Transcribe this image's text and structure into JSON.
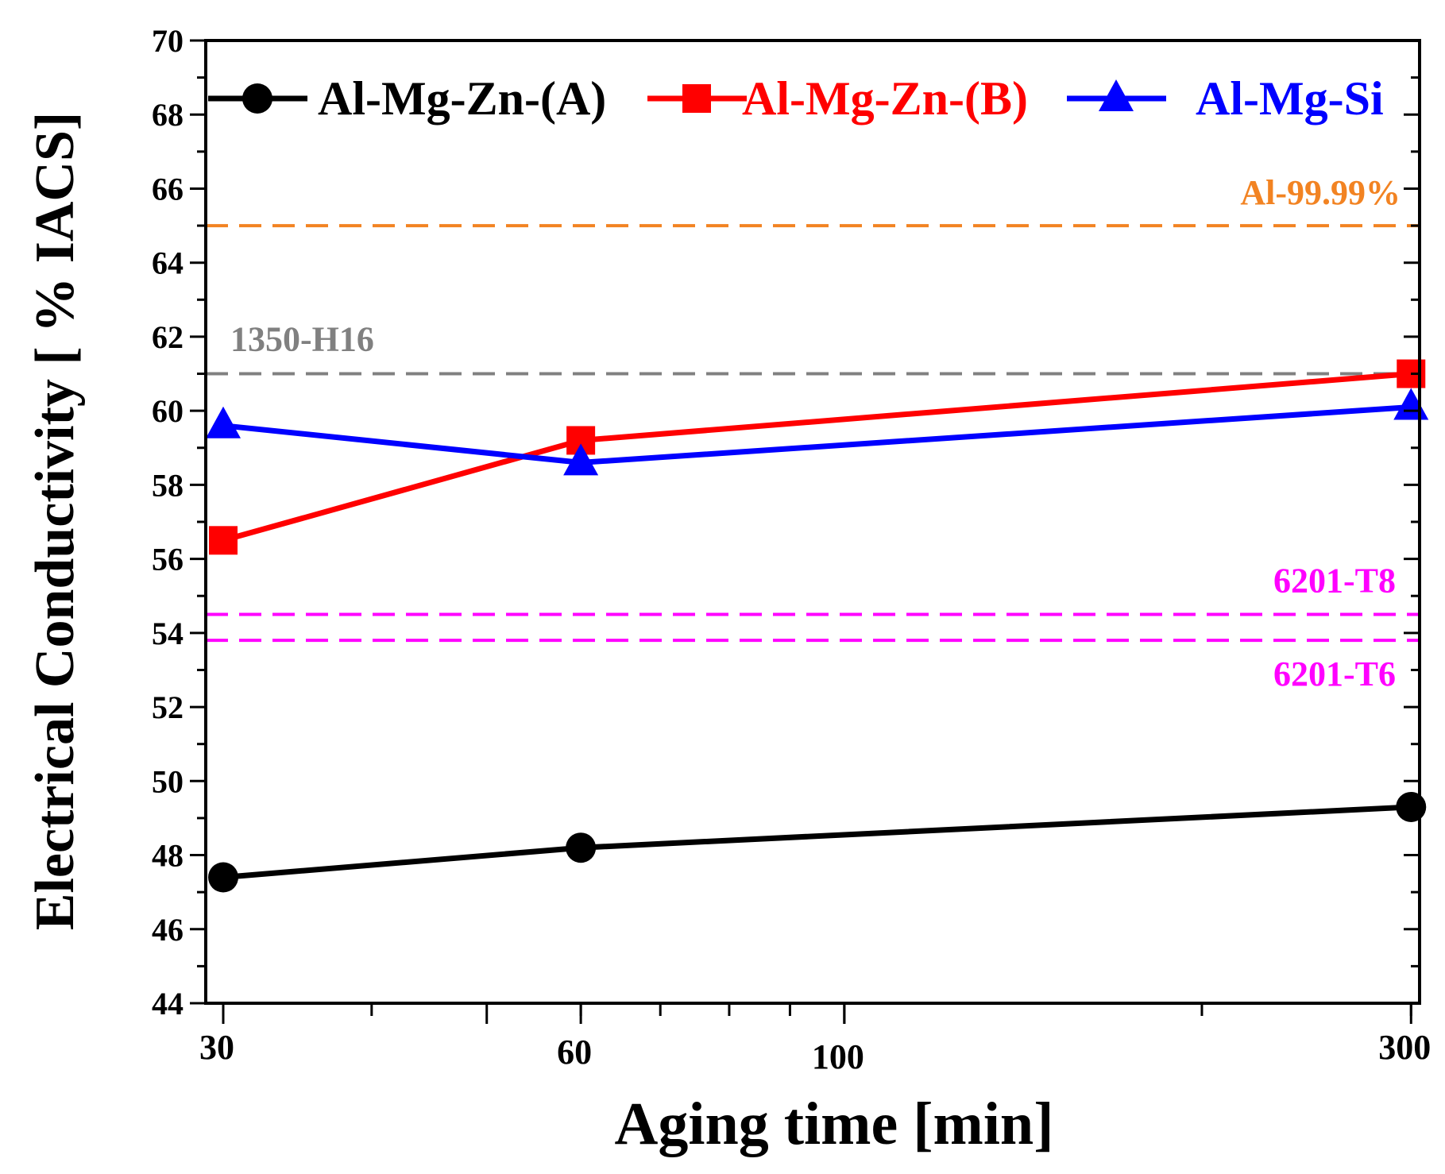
{
  "chart_data": {
    "type": "line",
    "title": "",
    "xlabel": "Aging time [min]",
    "ylabel": "Electrical Conductivity [ % IACS]",
    "xscale": "log",
    "xlim": [
      29,
      305
    ],
    "ylim": [
      44,
      70
    ],
    "xticks": [
      30,
      60,
      100,
      300
    ],
    "xtick_labels": [
      "30",
      "60",
      "100",
      "300"
    ],
    "yticks": [
      44,
      46,
      48,
      50,
      52,
      54,
      56,
      58,
      60,
      62,
      64,
      66,
      68,
      70
    ],
    "ytick_labels": [
      "44",
      "46",
      "48",
      "50",
      "52",
      "54",
      "56",
      "58",
      "60",
      "62",
      "64",
      "66",
      "68",
      "70"
    ],
    "legend_position": "top",
    "x": [
      30,
      60,
      300
    ],
    "series": [
      {
        "name": "Al-Mg-Zn-(A)",
        "color": "#000000",
        "marker": "circle",
        "values": [
          47.4,
          48.2,
          49.3
        ]
      },
      {
        "name": "Al-Mg-Zn-(B)",
        "color": "#ff0000",
        "marker": "square",
        "values": [
          56.5,
          59.2,
          61.0
        ]
      },
      {
        "name": "Al-Mg-Si",
        "color": "#0000ff",
        "marker": "triangle",
        "values": [
          59.6,
          58.6,
          60.1
        ]
      }
    ],
    "reference_lines": [
      {
        "label": "Al-99.99%",
        "value": 65.0,
        "color": "#f28322",
        "label_side": "above"
      },
      {
        "label": "1350-H16",
        "value": 61.0,
        "color": "#808080",
        "label_side": "above-left"
      },
      {
        "label": "6201-T8",
        "value": 54.5,
        "color": "#ff00ff",
        "label_side": "above"
      },
      {
        "label": "6201-T6",
        "value": 53.8,
        "color": "#ff00ff",
        "label_side": "below"
      }
    ]
  }
}
